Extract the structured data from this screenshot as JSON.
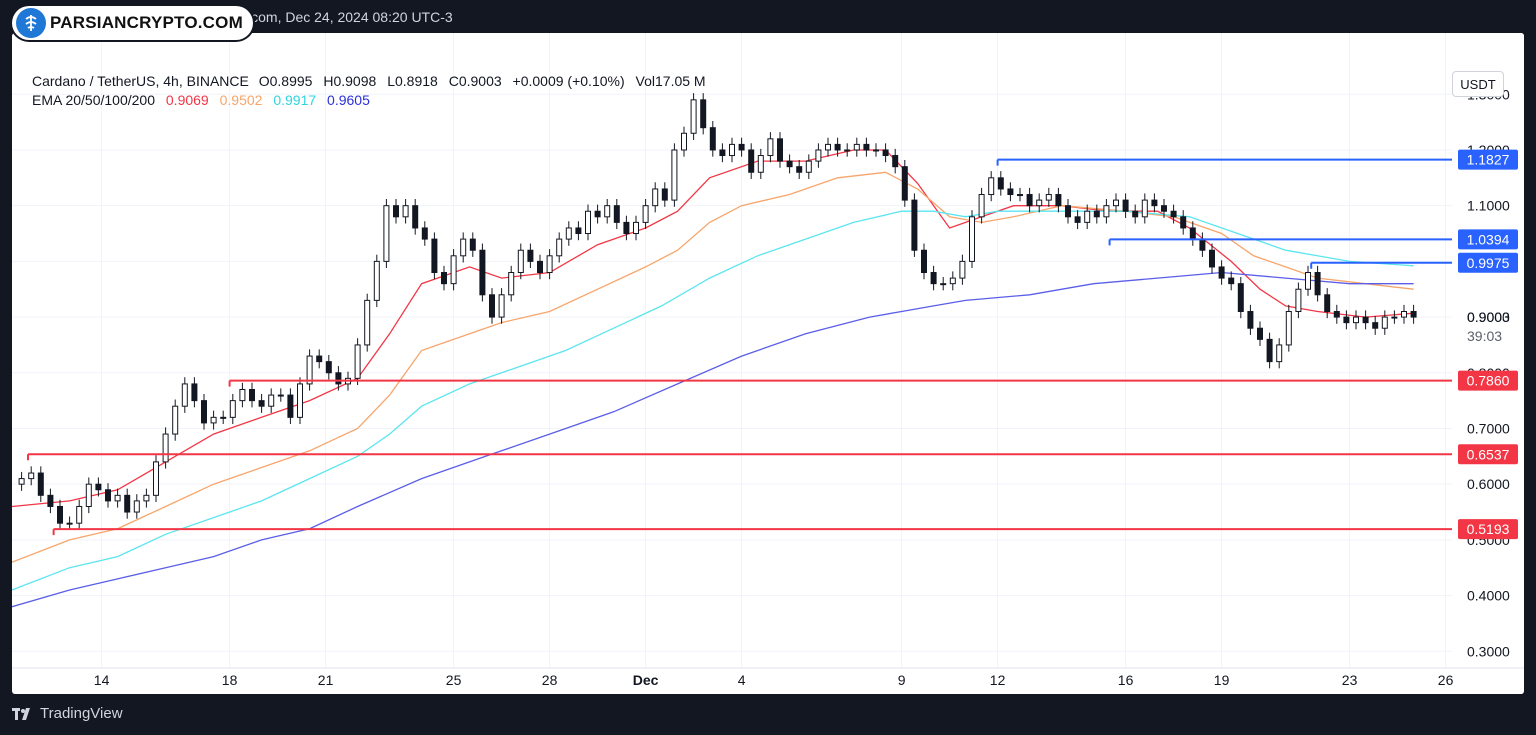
{
  "header": {
    "source_line": "view.com, Dec 24, 2024 08:20 UTC-3",
    "watermark": "PARSIANCRYPTO.COM"
  },
  "footer": {
    "brand": "TradingView"
  },
  "legend": {
    "symbol": "Cardano / TetherUS, 4h, BINANCE",
    "open_label": "O",
    "open": "0.8995",
    "high_label": "H",
    "high": "0.9098",
    "low_label": "L",
    "low": "0.8918",
    "close_label": "C",
    "close": "0.9003",
    "change": "+0.0009 (+0.10%)",
    "vol_label": "Vol",
    "vol": "17.05 M",
    "ema_label": "EMA 20/50/100/200",
    "ema20": "0.9069",
    "ema50": "0.9502",
    "ema100": "0.9917",
    "ema200": "0.9605"
  },
  "currency_button": "USDT",
  "price_tag": {
    "value": "0.9003",
    "countdown": "39:03"
  },
  "colors": {
    "ema20": "#f23645",
    "ema50": "#f7a56b",
    "ema100": "#5ce5ef",
    "ema200": "#5a5ee8",
    "support": "#f23645",
    "resistance": "#2962ff",
    "candle": "#131722"
  },
  "chart_data": {
    "type": "line",
    "title": "Cardano / TetherUS, 4h, BINANCE",
    "ylim": [
      0.27,
      1.41
    ],
    "xlim_days": [
      11.2,
      27.2
    ],
    "y_ticks": [
      "1.3000",
      "1.2000",
      "1.1000",
      "1.0000",
      "0.9000",
      "0.8000",
      "0.7000",
      "0.6000",
      "0.5000",
      "0.4000",
      "0.3000"
    ],
    "x_ticks": [
      {
        "label": "14",
        "day": 14
      },
      {
        "label": "18",
        "day": 18
      },
      {
        "label": "21",
        "day": 21
      },
      {
        "label": "25",
        "day": 25
      },
      {
        "label": "28",
        "day": 28
      },
      {
        "label": "Dec",
        "day": 31,
        "bold": true
      },
      {
        "label": "4",
        "day": 34
      },
      {
        "label": "9",
        "day": 39
      },
      {
        "label": "12",
        "day": 42
      },
      {
        "label": "16",
        "day": 46
      },
      {
        "label": "19",
        "day": 49
      },
      {
        "label": "23",
        "day": 53
      },
      {
        "label": "26",
        "day": 56
      }
    ],
    "price_series": [
      [
        11.2,
        0.6
      ],
      [
        11.5,
        0.61
      ],
      [
        11.8,
        0.62
      ],
      [
        12.1,
        0.58
      ],
      [
        12.4,
        0.56
      ],
      [
        12.7,
        0.53
      ],
      [
        13.0,
        0.53
      ],
      [
        13.3,
        0.56
      ],
      [
        13.6,
        0.6
      ],
      [
        13.9,
        0.59
      ],
      [
        14.2,
        0.57
      ],
      [
        14.5,
        0.58
      ],
      [
        14.8,
        0.55
      ],
      [
        15.1,
        0.57
      ],
      [
        15.4,
        0.58
      ],
      [
        15.7,
        0.64
      ],
      [
        16.0,
        0.69
      ],
      [
        16.3,
        0.74
      ],
      [
        16.6,
        0.78
      ],
      [
        16.9,
        0.75
      ],
      [
        17.2,
        0.71
      ],
      [
        17.5,
        0.72
      ],
      [
        17.8,
        0.72
      ],
      [
        18.1,
        0.75
      ],
      [
        18.4,
        0.77
      ],
      [
        18.7,
        0.75
      ],
      [
        19.0,
        0.74
      ],
      [
        19.3,
        0.76
      ],
      [
        19.6,
        0.76
      ],
      [
        19.9,
        0.72
      ],
      [
        20.2,
        0.78
      ],
      [
        20.5,
        0.83
      ],
      [
        20.8,
        0.82
      ],
      [
        21.1,
        0.8
      ],
      [
        21.4,
        0.78
      ],
      [
        21.7,
        0.79
      ],
      [
        22.0,
        0.85
      ],
      [
        22.3,
        0.93
      ],
      [
        22.6,
        1.0
      ],
      [
        22.9,
        1.1
      ],
      [
        23.2,
        1.08
      ],
      [
        23.5,
        1.1
      ],
      [
        23.8,
        1.06
      ],
      [
        24.1,
        1.04
      ],
      [
        24.4,
        0.98
      ],
      [
        24.7,
        0.96
      ],
      [
        25.0,
        1.01
      ],
      [
        25.3,
        1.04
      ],
      [
        25.6,
        1.02
      ],
      [
        25.9,
        0.94
      ],
      [
        26.2,
        0.9
      ],
      [
        26.5,
        0.94
      ],
      [
        26.8,
        0.98
      ],
      [
        27.1,
        1.02
      ],
      [
        27.4,
        1.0
      ],
      [
        27.7,
        0.98
      ],
      [
        28.0,
        1.01
      ],
      [
        28.3,
        1.04
      ],
      [
        28.6,
        1.06
      ],
      [
        28.9,
        1.05
      ],
      [
        29.2,
        1.09
      ],
      [
        29.5,
        1.08
      ],
      [
        29.8,
        1.1
      ],
      [
        30.1,
        1.07
      ],
      [
        30.4,
        1.05
      ],
      [
        30.7,
        1.07
      ],
      [
        31.0,
        1.1
      ],
      [
        31.3,
        1.13
      ],
      [
        31.6,
        1.11
      ],
      [
        31.9,
        1.2
      ],
      [
        32.2,
        1.23
      ],
      [
        32.5,
        1.29
      ],
      [
        32.8,
        1.24
      ],
      [
        33.1,
        1.2
      ],
      [
        33.4,
        1.19
      ],
      [
        33.7,
        1.21
      ],
      [
        34.0,
        1.2
      ],
      [
        34.3,
        1.16
      ],
      [
        34.6,
        1.19
      ],
      [
        34.9,
        1.22
      ],
      [
        35.2,
        1.18
      ],
      [
        35.5,
        1.17
      ],
      [
        35.8,
        1.16
      ],
      [
        36.1,
        1.18
      ],
      [
        36.4,
        1.2
      ],
      [
        36.7,
        1.21
      ],
      [
        37.0,
        1.2
      ],
      [
        37.3,
        1.2
      ],
      [
        37.6,
        1.21
      ],
      [
        37.9,
        1.2
      ],
      [
        38.2,
        1.2
      ],
      [
        38.5,
        1.19
      ],
      [
        38.8,
        1.17
      ],
      [
        39.1,
        1.11
      ],
      [
        39.4,
        1.02
      ],
      [
        39.7,
        0.98
      ],
      [
        40.0,
        0.96
      ],
      [
        40.3,
        0.96
      ],
      [
        40.6,
        0.97
      ],
      [
        40.9,
        1.0
      ],
      [
        41.2,
        1.08
      ],
      [
        41.5,
        1.12
      ],
      [
        41.8,
        1.15
      ],
      [
        42.1,
        1.13
      ],
      [
        42.4,
        1.12
      ],
      [
        42.7,
        1.12
      ],
      [
        43.0,
        1.1
      ],
      [
        43.3,
        1.11
      ],
      [
        43.6,
        1.12
      ],
      [
        43.9,
        1.1
      ],
      [
        44.2,
        1.08
      ],
      [
        44.5,
        1.07
      ],
      [
        44.8,
        1.09
      ],
      [
        45.1,
        1.08
      ],
      [
        45.4,
        1.1
      ],
      [
        45.7,
        1.11
      ],
      [
        46.0,
        1.09
      ],
      [
        46.3,
        1.08
      ],
      [
        46.6,
        1.11
      ],
      [
        46.9,
        1.1
      ],
      [
        47.2,
        1.09
      ],
      [
        47.5,
        1.08
      ],
      [
        47.8,
        1.06
      ],
      [
        48.1,
        1.04
      ],
      [
        48.4,
        1.02
      ],
      [
        48.7,
        0.99
      ],
      [
        49.0,
        0.97
      ],
      [
        49.3,
        0.96
      ],
      [
        49.6,
        0.91
      ],
      [
        49.9,
        0.88
      ],
      [
        50.2,
        0.86
      ],
      [
        50.5,
        0.82
      ],
      [
        50.8,
        0.85
      ],
      [
        51.1,
        0.91
      ],
      [
        51.4,
        0.95
      ],
      [
        51.7,
        0.98
      ],
      [
        52.0,
        0.94
      ],
      [
        52.3,
        0.91
      ],
      [
        52.6,
        0.9
      ],
      [
        52.9,
        0.89
      ],
      [
        53.2,
        0.9
      ],
      [
        53.5,
        0.89
      ],
      [
        53.8,
        0.88
      ],
      [
        54.1,
        0.9
      ],
      [
        54.4,
        0.9
      ],
      [
        54.7,
        0.91
      ],
      [
        55.0,
        0.9
      ]
    ],
    "series": [
      {
        "name": "EMA 20",
        "value": "0.9069",
        "points": [
          [
            11.2,
            0.56
          ],
          [
            13,
            0.57
          ],
          [
            14.5,
            0.59
          ],
          [
            16,
            0.64
          ],
          [
            17.5,
            0.69
          ],
          [
            19,
            0.72
          ],
          [
            20.5,
            0.75
          ],
          [
            22,
            0.79
          ],
          [
            23,
            0.87
          ],
          [
            24,
            0.96
          ],
          [
            25.5,
            0.99
          ],
          [
            26.5,
            0.97
          ],
          [
            28,
            0.98
          ],
          [
            29.5,
            1.03
          ],
          [
            31,
            1.06
          ],
          [
            32,
            1.09
          ],
          [
            33,
            1.15
          ],
          [
            34.5,
            1.18
          ],
          [
            36,
            1.18
          ],
          [
            37.5,
            1.2
          ],
          [
            38.5,
            1.2
          ],
          [
            39.5,
            1.14
          ],
          [
            40.5,
            1.06
          ],
          [
            41.5,
            1.08
          ],
          [
            42.5,
            1.1
          ],
          [
            44,
            1.1
          ],
          [
            45.5,
            1.09
          ],
          [
            47,
            1.09
          ],
          [
            48,
            1.06
          ],
          [
            49.3,
            1.0
          ],
          [
            50.2,
            0.95
          ],
          [
            51,
            0.92
          ],
          [
            52,
            0.91
          ],
          [
            53.5,
            0.9
          ],
          [
            55,
            0.907
          ]
        ]
      },
      {
        "name": "EMA 50",
        "value": "0.9502",
        "points": [
          [
            11.2,
            0.46
          ],
          [
            13,
            0.5
          ],
          [
            14.5,
            0.52
          ],
          [
            16,
            0.56
          ],
          [
            17.5,
            0.6
          ],
          [
            19,
            0.63
          ],
          [
            20.5,
            0.66
          ],
          [
            22,
            0.7
          ],
          [
            23,
            0.76
          ],
          [
            24,
            0.84
          ],
          [
            25.5,
            0.87
          ],
          [
            26.5,
            0.89
          ],
          [
            28,
            0.91
          ],
          [
            29.5,
            0.95
          ],
          [
            31,
            0.99
          ],
          [
            32,
            1.02
          ],
          [
            33,
            1.07
          ],
          [
            34,
            1.1
          ],
          [
            35.5,
            1.12
          ],
          [
            37,
            1.15
          ],
          [
            38.5,
            1.16
          ],
          [
            39.5,
            1.13
          ],
          [
            40.5,
            1.08
          ],
          [
            41.5,
            1.07
          ],
          [
            42.5,
            1.08
          ],
          [
            44,
            1.1
          ],
          [
            46,
            1.09
          ],
          [
            47.5,
            1.08
          ],
          [
            49,
            1.05
          ],
          [
            50,
            1.01
          ],
          [
            51,
            0.99
          ],
          [
            52,
            0.97
          ],
          [
            53.5,
            0.96
          ],
          [
            55,
            0.95
          ]
        ]
      },
      {
        "name": "EMA 100",
        "value": "0.9917",
        "points": [
          [
            11.2,
            0.41
          ],
          [
            13,
            0.45
          ],
          [
            14.5,
            0.47
          ],
          [
            16,
            0.51
          ],
          [
            17.5,
            0.54
          ],
          [
            19,
            0.57
          ],
          [
            20.5,
            0.61
          ],
          [
            22,
            0.65
          ],
          [
            23,
            0.69
          ],
          [
            24,
            0.74
          ],
          [
            25.5,
            0.78
          ],
          [
            27,
            0.81
          ],
          [
            28.5,
            0.84
          ],
          [
            30,
            0.88
          ],
          [
            31.5,
            0.92
          ],
          [
            33,
            0.97
          ],
          [
            34.5,
            1.01
          ],
          [
            36,
            1.04
          ],
          [
            37.5,
            1.07
          ],
          [
            39,
            1.09
          ],
          [
            40,
            1.09
          ],
          [
            41,
            1.08
          ],
          [
            42,
            1.09
          ],
          [
            44,
            1.09
          ],
          [
            46,
            1.09
          ],
          [
            48,
            1.08
          ],
          [
            49.5,
            1.05
          ],
          [
            51,
            1.02
          ],
          [
            53,
            1.0
          ],
          [
            55,
            0.992
          ]
        ]
      },
      {
        "name": "EMA 200",
        "value": "0.9605",
        "points": [
          [
            11.2,
            0.38
          ],
          [
            13,
            0.41
          ],
          [
            14.5,
            0.43
          ],
          [
            16,
            0.45
          ],
          [
            17.5,
            0.47
          ],
          [
            19,
            0.5
          ],
          [
            20.5,
            0.52
          ],
          [
            22,
            0.56
          ],
          [
            24,
            0.61
          ],
          [
            26,
            0.65
          ],
          [
            28,
            0.69
          ],
          [
            30,
            0.73
          ],
          [
            32,
            0.78
          ],
          [
            34,
            0.83
          ],
          [
            36,
            0.87
          ],
          [
            38,
            0.9
          ],
          [
            39,
            0.91
          ],
          [
            40,
            0.92
          ],
          [
            41,
            0.93
          ],
          [
            43,
            0.94
          ],
          [
            45,
            0.96
          ],
          [
            47,
            0.97
          ],
          [
            49,
            0.98
          ],
          [
            51,
            0.97
          ],
          [
            53,
            0.96
          ],
          [
            55,
            0.96
          ]
        ]
      }
    ],
    "levels": [
      {
        "label": "1.1827",
        "value": 1.1827,
        "kind": "resistance",
        "from_day": 42.0
      },
      {
        "label": "1.0394",
        "value": 1.0394,
        "kind": "resistance",
        "from_day": 45.5
      },
      {
        "label": "0.9975",
        "value": 0.9975,
        "kind": "resistance",
        "from_day": 51.8
      },
      {
        "label": "0.7860",
        "value": 0.786,
        "kind": "support",
        "from_day": 18.0
      },
      {
        "label": "0.6537",
        "value": 0.6537,
        "kind": "support",
        "from_day": 11.7
      },
      {
        "label": "0.5193",
        "value": 0.5193,
        "kind": "support",
        "from_day": 12.5
      }
    ],
    "grid": true
  }
}
